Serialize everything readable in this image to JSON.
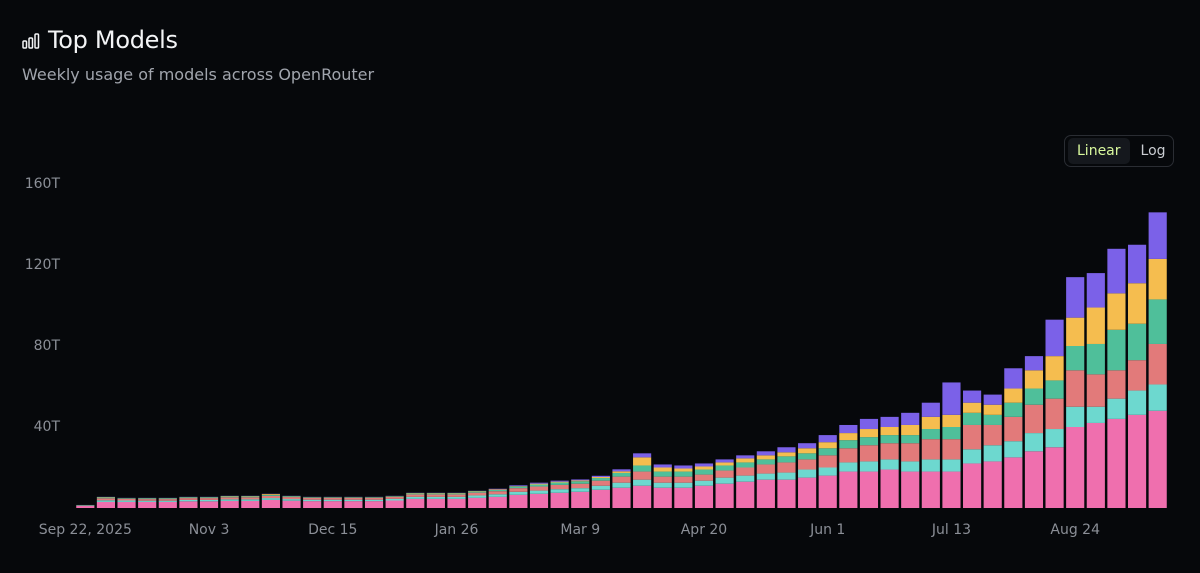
{
  "header": {
    "title": "Top Models",
    "subtitle": "Weekly usage of models across OpenRouter"
  },
  "toggle": {
    "options": [
      "Linear",
      "Log"
    ],
    "active": 0
  },
  "chart_data": {
    "type": "bar",
    "stacked": true,
    "grid": false,
    "categories": [
      "Sep 22, 2025",
      null,
      null,
      null,
      null,
      null,
      "Nov 3",
      null,
      null,
      null,
      null,
      null,
      "Dec 15",
      null,
      null,
      null,
      null,
      null,
      "Jan 26",
      null,
      null,
      null,
      null,
      null,
      "Mar 9",
      null,
      null,
      null,
      null,
      null,
      "Apr 20",
      null,
      null,
      null,
      null,
      null,
      "Jun 1",
      null,
      null,
      null,
      null,
      null,
      "Jul 13",
      null,
      null,
      null,
      null,
      null,
      "Aug 24",
      null,
      null,
      null,
      null
    ],
    "ylim": [
      0,
      160
    ],
    "yticks": [
      {
        "value": 40,
        "label": "40T"
      },
      {
        "value": 80,
        "label": "80T"
      },
      {
        "value": 120,
        "label": "120T"
      },
      {
        "value": 160,
        "label": "160T"
      }
    ],
    "series": [
      {
        "color": "#ef6fae",
        "values": [
          1,
          3,
          3,
          3,
          3,
          3.3,
          3.3,
          3.5,
          3.5,
          4,
          3.6,
          3.4,
          3.4,
          3.4,
          3.4,
          3.7,
          4.5,
          4.5,
          4.5,
          5,
          5.5,
          6.5,
          7,
          7.5,
          8,
          9,
          10,
          11,
          10,
          10,
          11,
          12,
          13,
          14,
          14,
          15,
          16,
          18,
          18,
          19,
          18,
          18,
          18,
          22,
          23,
          25,
          28,
          30,
          40,
          42,
          44,
          46,
          48
        ]
      },
      {
        "color": "#6dd8cf",
        "values": [
          0.2,
          0.8,
          0.7,
          0.6,
          0.6,
          0.7,
          0.7,
          0.8,
          0.8,
          0.9,
          0.8,
          0.7,
          0.7,
          0.7,
          0.7,
          0.8,
          1,
          1,
          1,
          1.2,
          1.3,
          1.5,
          1.6,
          1.8,
          1.8,
          2,
          2.5,
          3,
          2.5,
          2.5,
          2.5,
          3,
          3,
          3,
          3.5,
          4,
          4,
          4.5,
          5,
          5,
          5,
          6,
          6,
          7,
          8,
          8,
          9,
          9,
          10,
          8,
          10,
          12,
          13
        ]
      },
      {
        "color": "#e27a7a",
        "values": [
          0.2,
          1,
          0.8,
          0.8,
          0.8,
          0.9,
          0.9,
          1,
          1,
          1.1,
          1,
          0.9,
          0.9,
          0.9,
          0.9,
          1,
          1.2,
          1.2,
          1.2,
          1.4,
          1.5,
          1.8,
          2,
          2.1,
          2.2,
          2.5,
          3,
          4,
          3,
          3,
          3,
          3.5,
          4,
          4.5,
          5,
          5,
          6,
          7,
          8,
          8,
          9,
          10,
          10,
          12,
          10,
          12,
          14,
          15,
          18,
          16,
          14,
          15,
          20
        ]
      },
      {
        "color": "#4fbf9a",
        "values": [
          0.1,
          0.4,
          0.3,
          0.4,
          0.4,
          0.4,
          0.4,
          0.4,
          0.4,
          0.5,
          0.4,
          0.3,
          0.3,
          0.3,
          0.3,
          0.3,
          0.5,
          0.5,
          0.5,
          0.6,
          0.6,
          0.8,
          1,
          1.2,
          1.2,
          1.3,
          1.8,
          3,
          2.5,
          2.5,
          2.5,
          2.5,
          2.5,
          2.5,
          3,
          3,
          3.5,
          4,
          4,
          4,
          4,
          5,
          6,
          6,
          5,
          7,
          8,
          9,
          12,
          15,
          20,
          18,
          22
        ]
      },
      {
        "color": "#f5bd4f",
        "values": [
          0,
          0.2,
          0.1,
          0.1,
          0.1,
          0.1,
          0.1,
          0.2,
          0.2,
          0.4,
          0.1,
          0.1,
          0.1,
          0.1,
          0.1,
          0.1,
          0.2,
          0.2,
          0.2,
          0.2,
          0.3,
          0.2,
          0.4,
          0.4,
          0.4,
          0.5,
          0.8,
          4,
          2,
          1.5,
          1.5,
          1.5,
          2,
          2,
          2,
          2.5,
          3,
          3.5,
          4,
          4,
          5,
          6,
          6,
          5,
          5,
          7,
          9,
          12,
          14,
          18,
          18,
          20,
          20
        ]
      },
      {
        "color": "#7b61e8",
        "values": [
          0,
          0.1,
          0.1,
          0.1,
          0.1,
          0.1,
          0.1,
          0.1,
          0.1,
          0.1,
          0.1,
          0.1,
          0.1,
          0.1,
          0.1,
          0.1,
          0.1,
          0.1,
          0.1,
          0.1,
          0.3,
          0.4,
          0.5,
          0.5,
          0.5,
          0.6,
          1,
          2,
          1.5,
          1.5,
          1.5,
          1.5,
          1.5,
          2,
          2.5,
          2.5,
          3.5,
          4,
          5,
          5,
          6,
          7,
          16,
          6,
          5,
          10,
          7,
          18,
          20,
          17,
          22,
          19,
          23
        ]
      }
    ]
  }
}
